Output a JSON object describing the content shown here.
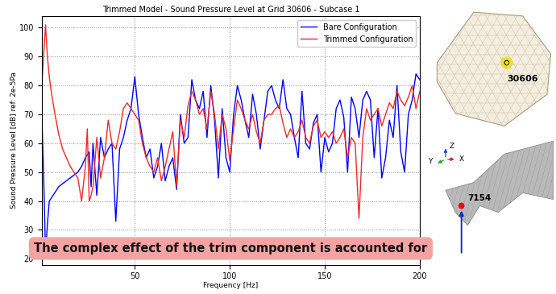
{
  "chart_data": {
    "type": "line",
    "title": "Trimmed Model - Sound Pressure Level at Grid 30606 - Subcase 1",
    "x_label": "Frequency [Hz]",
    "y_label": "Sound Pressure Level [dB] ref: 2e-5Pa",
    "annotation": "The complex effect of the trim component is accounted for",
    "x": [
      1,
      2,
      3,
      4,
      5,
      6,
      8,
      10,
      12,
      14,
      16,
      18,
      20,
      22,
      24,
      25,
      26,
      27,
      28,
      30,
      32,
      34,
      36,
      38,
      40,
      42,
      44,
      46,
      48,
      50,
      52,
      54,
      56,
      58,
      60,
      62,
      64,
      66,
      68,
      70,
      72,
      74,
      76,
      78,
      80,
      82,
      84,
      86,
      88,
      90,
      92,
      94,
      96,
      98,
      100,
      102,
      104,
      106,
      108,
      110,
      112,
      114,
      116,
      118,
      120,
      122,
      124,
      126,
      128,
      130,
      132,
      134,
      136,
      138,
      140,
      142,
      144,
      146,
      148,
      150,
      152,
      154,
      156,
      158,
      160,
      162,
      164,
      166,
      168,
      170,
      172,
      174,
      176,
      178,
      180,
      182,
      184,
      186,
      188,
      190,
      192,
      194,
      196,
      198,
      200
    ],
    "series": [
      {
        "name": "Bare Configuration",
        "color": "#0000ff",
        "values": [
          70,
          50,
          22,
          32,
          40,
          41,
          43,
          45,
          46,
          47,
          48,
          49,
          50,
          52,
          55,
          56,
          57,
          45,
          60,
          42,
          62,
          55,
          58,
          60,
          33,
          58,
          62,
          68,
          72,
          83,
          70,
          62,
          55,
          58,
          48,
          52,
          60,
          47,
          52,
          55,
          44,
          70,
          60,
          62,
          82,
          75,
          72,
          78,
          62,
          80,
          68,
          48,
          72,
          55,
          50,
          70,
          80,
          75,
          68,
          62,
          77,
          70,
          58,
          68,
          78,
          80,
          75,
          72,
          82,
          72,
          70,
          62,
          55,
          78,
          60,
          58,
          67,
          70,
          50,
          62,
          57,
          60,
          72,
          75,
          69,
          50,
          76,
          72,
          62,
          75,
          78,
          75,
          55,
          72,
          48,
          55,
          68,
          62,
          80,
          57,
          50,
          70,
          75,
          84,
          82
        ]
      },
      {
        "name": "Trimmed Configuration",
        "color": "#ee2a2a",
        "values": [
          80,
          90,
          101,
          90,
          83,
          78,
          70,
          63,
          58,
          55,
          52,
          50,
          48,
          40,
          52,
          65,
          40,
          42,
          45,
          62,
          48,
          55,
          68,
          60,
          58,
          64,
          72,
          74,
          72,
          70,
          68,
          60,
          55,
          52,
          50,
          55,
          47,
          52,
          58,
          64,
          45,
          68,
          62,
          73,
          78,
          75,
          70,
          72,
          65,
          78,
          70,
          58,
          70,
          65,
          54,
          65,
          75,
          72,
          68,
          65,
          70,
          64,
          60,
          68,
          70,
          70,
          72,
          73,
          67,
          62,
          65,
          62,
          64,
          68,
          62,
          60,
          66,
          68,
          62,
          64,
          62,
          64,
          60,
          62,
          65,
          55,
          62,
          60,
          34,
          62,
          72,
          68,
          70,
          72,
          66,
          70,
          74,
          72,
          78,
          75,
          73,
          76,
          80,
          72,
          78
        ]
      }
    ],
    "xlim": [
      1,
      200
    ],
    "xticks": [
      50,
      100,
      150,
      200
    ],
    "ylim": [
      18,
      104
    ],
    "yticks": [
      20,
      30,
      40,
      50,
      60,
      70,
      80,
      90,
      100
    ],
    "grid": true,
    "legend": "upper right"
  },
  "side_panels": {
    "top": {
      "node_label": "30606"
    },
    "bottom": {
      "node_label": "7154",
      "triad_labels": [
        "Y",
        "Z",
        "X"
      ]
    }
  }
}
